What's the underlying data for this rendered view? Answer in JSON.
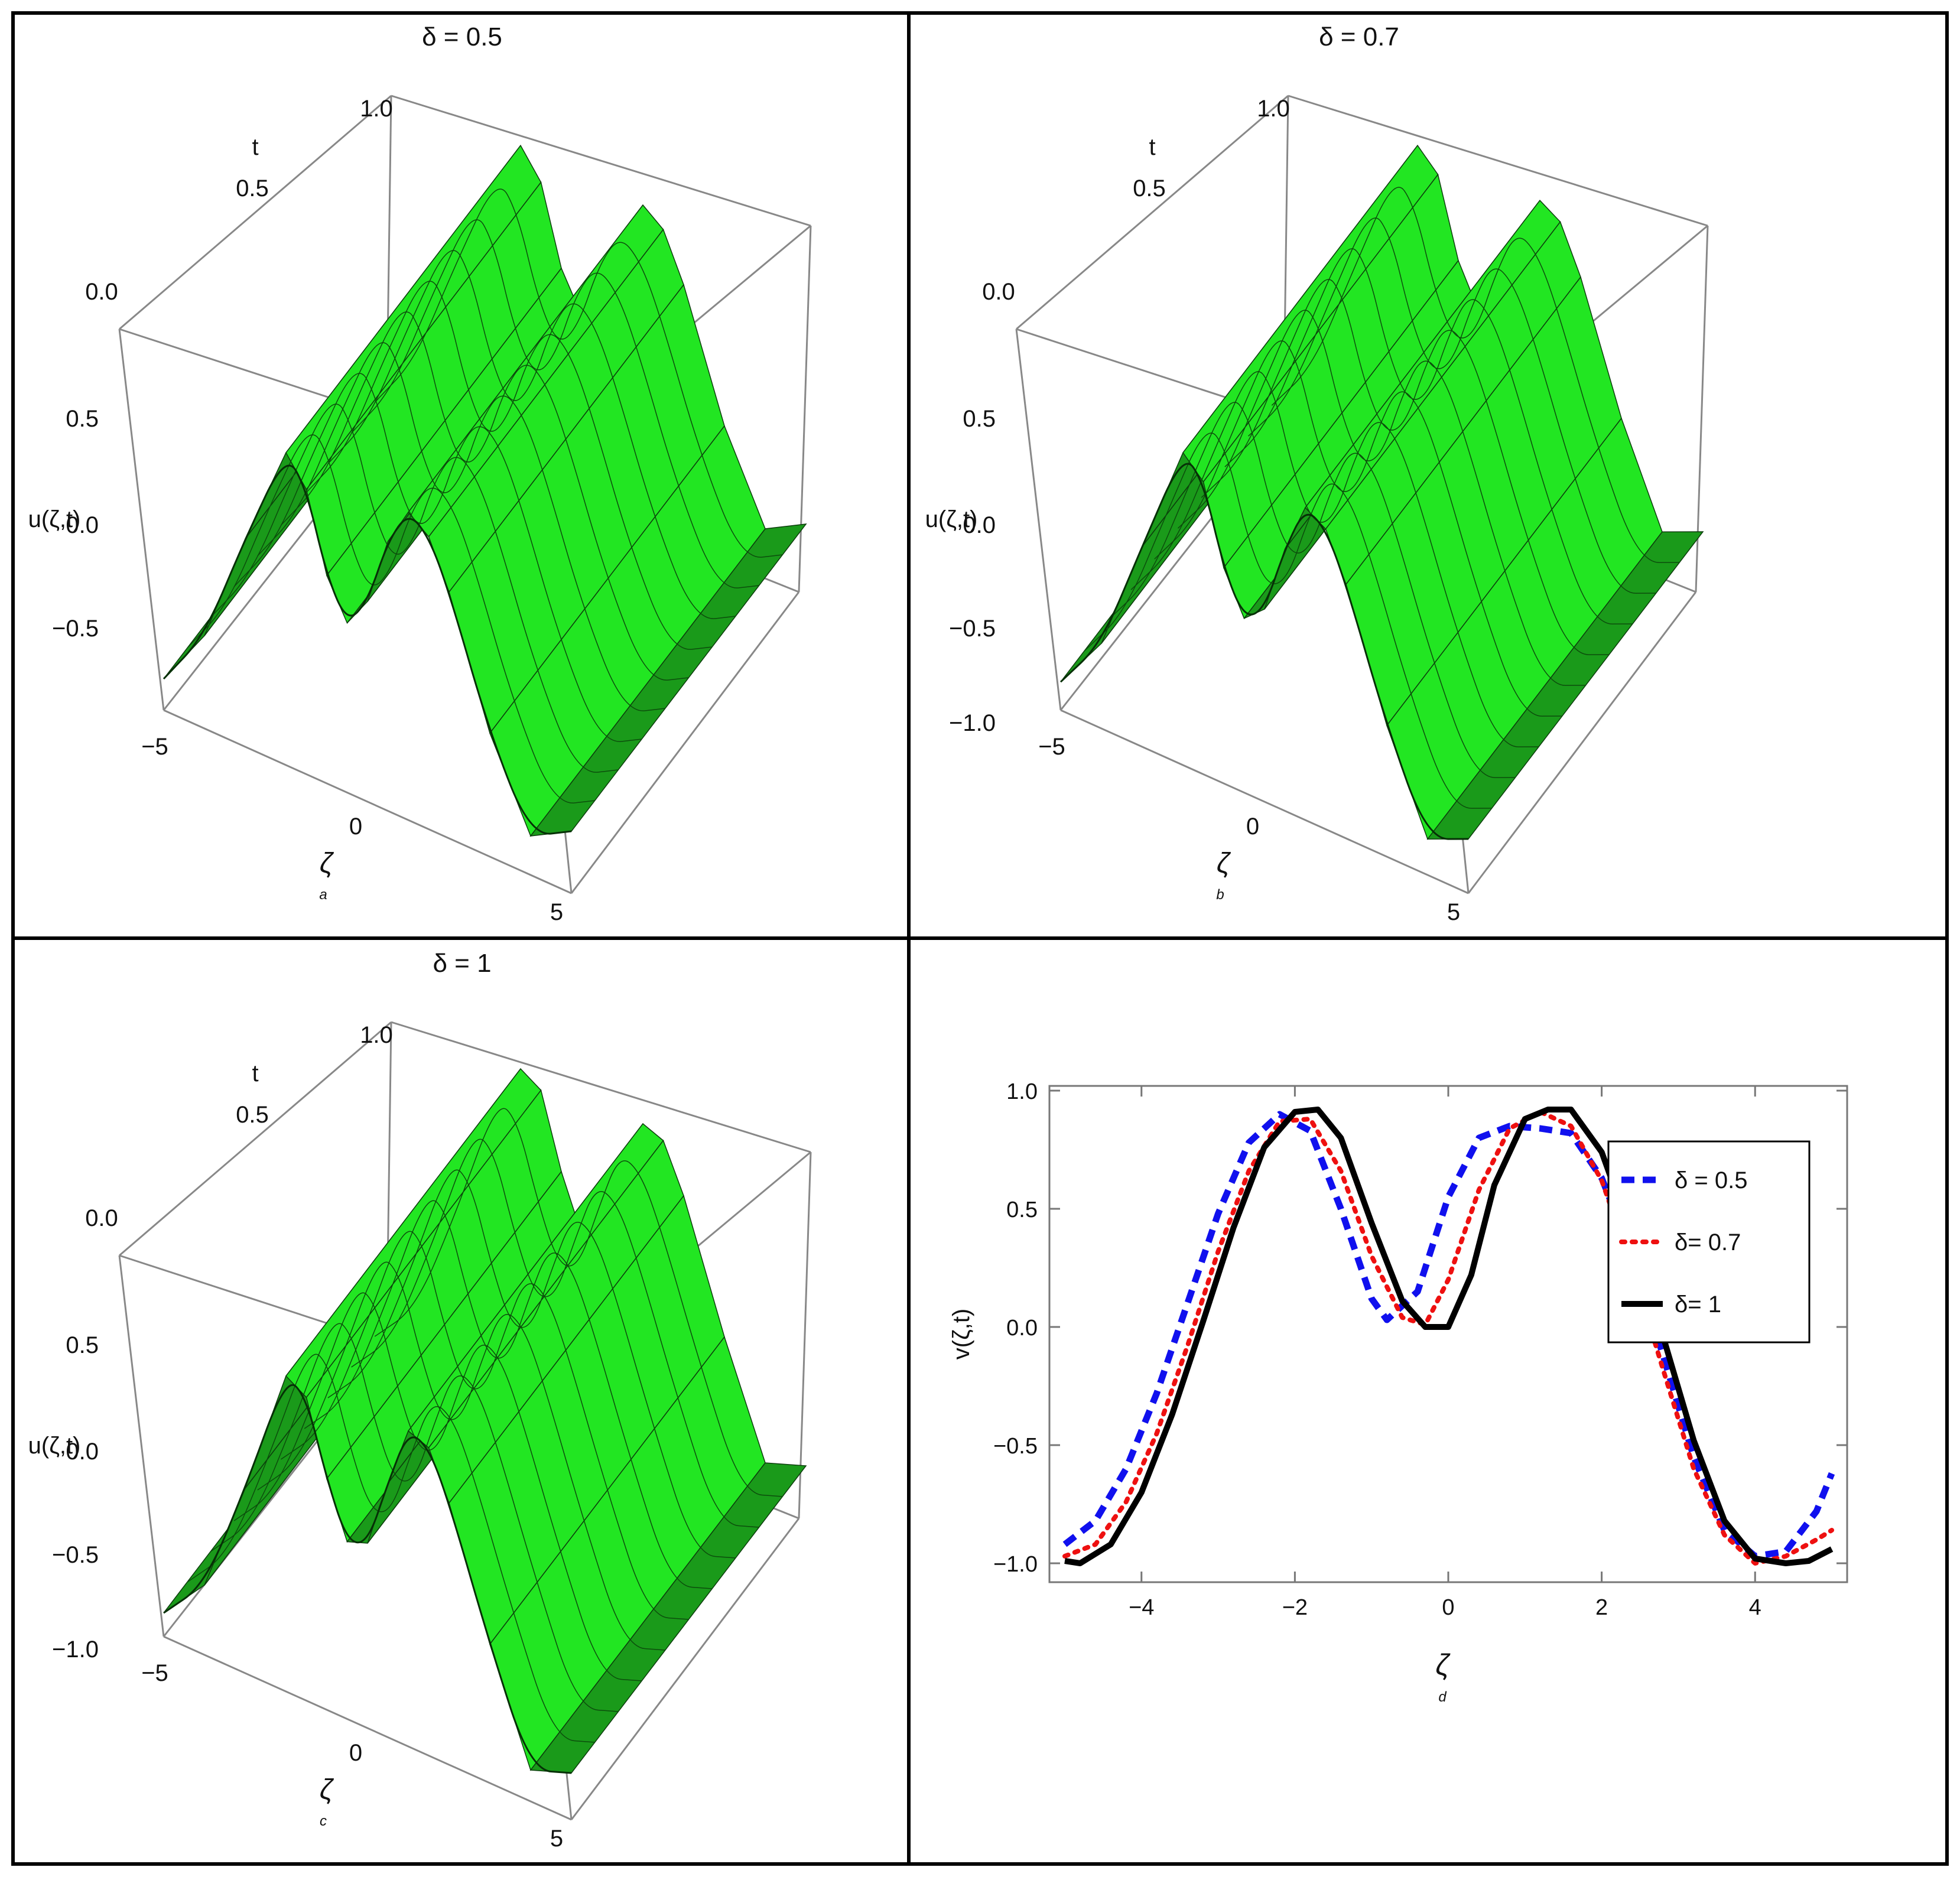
{
  "chart_data": [
    {
      "type": "surface3d",
      "panel": "a",
      "title": "δ = 0.5",
      "sublabel": "a",
      "xlabel": "ζ",
      "ylabel": "t",
      "zlabel": "u(ζ,t)",
      "x_ticks": [
        "−5",
        "0",
        "5"
      ],
      "t_ticks": [
        "0.0",
        "0.5",
        "1.0"
      ],
      "z_ticks": [
        "0.5",
        "0.0",
        "−0.5"
      ],
      "xlim": [
        -5,
        5
      ],
      "tlim": [
        0,
        1
      ],
      "zlim": [
        -1,
        1
      ],
      "profile_x": [
        -5,
        -4,
        -3,
        -2,
        -1.5,
        -1,
        -0.5,
        0,
        0.5,
        1,
        1.5,
        2,
        3,
        4,
        5
      ],
      "profile_z": [
        -0.95,
        -0.55,
        0.2,
        0.88,
        0.7,
        0.2,
        -0.05,
        0.15,
        0.6,
        0.85,
        0.75,
        0.45,
        -0.35,
        -0.9,
        -0.75
      ],
      "color": "#22ee22"
    },
    {
      "type": "surface3d",
      "panel": "b",
      "title": "δ = 0.7",
      "sublabel": "b",
      "xlabel": "ζ",
      "ylabel": "t",
      "zlabel": "u(ζ,t)",
      "x_ticks": [
        "−5",
        "0",
        "5"
      ],
      "t_ticks": [
        "0.0",
        "0.5",
        "1.0"
      ],
      "z_ticks": [
        "0.5",
        "0.0",
        "−0.5",
        "−1.0"
      ],
      "xlim": [
        -5,
        5
      ],
      "tlim": [
        0,
        1
      ],
      "zlim": [
        -1,
        1
      ],
      "profile_x": [
        -5,
        -4,
        -3,
        -2,
        -1.5,
        -1,
        -0.5,
        0,
        0.5,
        1,
        1.5,
        2,
        3,
        4,
        5
      ],
      "profile_z": [
        -0.97,
        -0.6,
        0.15,
        0.88,
        0.75,
        0.25,
        -0.02,
        0.1,
        0.55,
        0.88,
        0.8,
        0.5,
        -0.3,
        -0.92,
        -0.8
      ],
      "color": "#22ee22"
    },
    {
      "type": "surface3d",
      "panel": "c",
      "title": "δ = 1",
      "sublabel": "c",
      "xlabel": "ζ",
      "ylabel": "t",
      "zlabel": "u(ζ,t)",
      "x_ticks": [
        "−5",
        "0",
        "5"
      ],
      "t_ticks": [
        "0.0",
        "0.5",
        "1.0"
      ],
      "z_ticks": [
        "0.5",
        "0.0",
        "−0.5",
        "−1.0"
      ],
      "xlim": [
        -5,
        5
      ],
      "tlim": [
        0,
        1
      ],
      "zlim": [
        -1,
        1
      ],
      "profile_x": [
        -5,
        -4,
        -3,
        -2,
        -1.5,
        -1,
        -0.5,
        0,
        0.5,
        1,
        1.5,
        2,
        3,
        4,
        5
      ],
      "profile_z": [
        -1.0,
        -0.7,
        0.05,
        0.9,
        0.82,
        0.35,
        0.0,
        0.05,
        0.5,
        0.9,
        0.85,
        0.55,
        -0.25,
        -0.95,
        -0.85
      ],
      "color": "#22ee22"
    },
    {
      "type": "line",
      "panel": "d",
      "sublabel": "d",
      "xlabel": "ζ",
      "ylabel": "v(ζ,t)",
      "xlim": [
        -5.2,
        5.2
      ],
      "ylim": [
        -1.08,
        1.02
      ],
      "x_ticks": [
        -4,
        -2,
        0,
        2,
        4
      ],
      "x_tick_labels": [
        "−4",
        "−2",
        "0",
        "2",
        "4"
      ],
      "y_ticks": [
        -1.0,
        -0.5,
        0.0,
        0.5,
        1.0
      ],
      "y_tick_labels": [
        "−1.0",
        "−0.5",
        "0.0",
        "0.5",
        "1.0"
      ],
      "legend_position": "top-right",
      "series": [
        {
          "name": "δ = 0.5",
          "color": "#1010ee",
          "dash": "dashed",
          "shift": 0.4,
          "x": [
            -5.0,
            -4.6,
            -4.2,
            -3.8,
            -3.4,
            -3.0,
            -2.6,
            -2.2,
            -1.8,
            -1.4,
            -1.0,
            -0.8,
            -0.4,
            0.0,
            0.4,
            0.8,
            1.2,
            1.6,
            2.0,
            2.4,
            2.8,
            3.2,
            3.6,
            4.0,
            4.4,
            4.8,
            5.0
          ],
          "y": [
            -0.92,
            -0.82,
            -0.6,
            -0.28,
            0.1,
            0.48,
            0.78,
            0.9,
            0.83,
            0.5,
            0.12,
            0.03,
            0.15,
            0.55,
            0.8,
            0.85,
            0.84,
            0.82,
            0.63,
            0.3,
            -0.12,
            -0.55,
            -0.86,
            -0.97,
            -0.95,
            -0.78,
            -0.62
          ]
        },
        {
          "name": "δ= 0.7",
          "color": "#ee1010",
          "dash": "dotted",
          "shift": 0.2,
          "x": [
            -5.0,
            -4.6,
            -4.2,
            -3.8,
            -3.4,
            -3.0,
            -2.6,
            -2.2,
            -1.8,
            -1.4,
            -1.0,
            -0.6,
            -0.3,
            0.0,
            0.4,
            0.8,
            1.2,
            1.6,
            2.0,
            2.4,
            2.8,
            3.2,
            3.6,
            4.0,
            4.4,
            4.8,
            5.0
          ],
          "y": [
            -0.97,
            -0.92,
            -0.74,
            -0.45,
            -0.08,
            0.32,
            0.66,
            0.87,
            0.88,
            0.66,
            0.3,
            0.04,
            0.01,
            0.2,
            0.58,
            0.84,
            0.91,
            0.85,
            0.62,
            0.25,
            -0.18,
            -0.6,
            -0.88,
            -1.0,
            -0.97,
            -0.9,
            -0.86
          ]
        },
        {
          "name": "δ= 1",
          "color": "#000000",
          "dash": "solid",
          "shift": 0.0,
          "x": [
            -5.0,
            -4.8,
            -4.4,
            -4.0,
            -3.6,
            -3.2,
            -2.8,
            -2.4,
            -2.0,
            -1.7,
            -1.4,
            -1.0,
            -0.6,
            -0.3,
            0.0,
            0.3,
            0.6,
            1.0,
            1.3,
            1.6,
            2.0,
            2.4,
            2.8,
            3.2,
            3.6,
            4.0,
            4.4,
            4.7,
            5.0
          ],
          "y": [
            -0.99,
            -1.0,
            -0.92,
            -0.7,
            -0.37,
            0.02,
            0.42,
            0.76,
            0.91,
            0.92,
            0.8,
            0.44,
            0.11,
            0.0,
            0.0,
            0.22,
            0.6,
            0.88,
            0.92,
            0.92,
            0.74,
            0.38,
            -0.04,
            -0.48,
            -0.82,
            -0.98,
            -1.0,
            -0.99,
            -0.94
          ]
        }
      ]
    }
  ]
}
